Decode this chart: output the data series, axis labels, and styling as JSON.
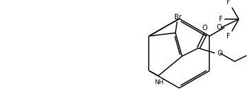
{
  "bg_color": "#ffffff",
  "line_color": "#000000",
  "text_color": "#000000",
  "figsize": [
    3.66,
    1.52
  ],
  "dpi": 100,
  "xlim": [
    0,
    9.5
  ],
  "ylim": [
    0,
    3.8
  ]
}
